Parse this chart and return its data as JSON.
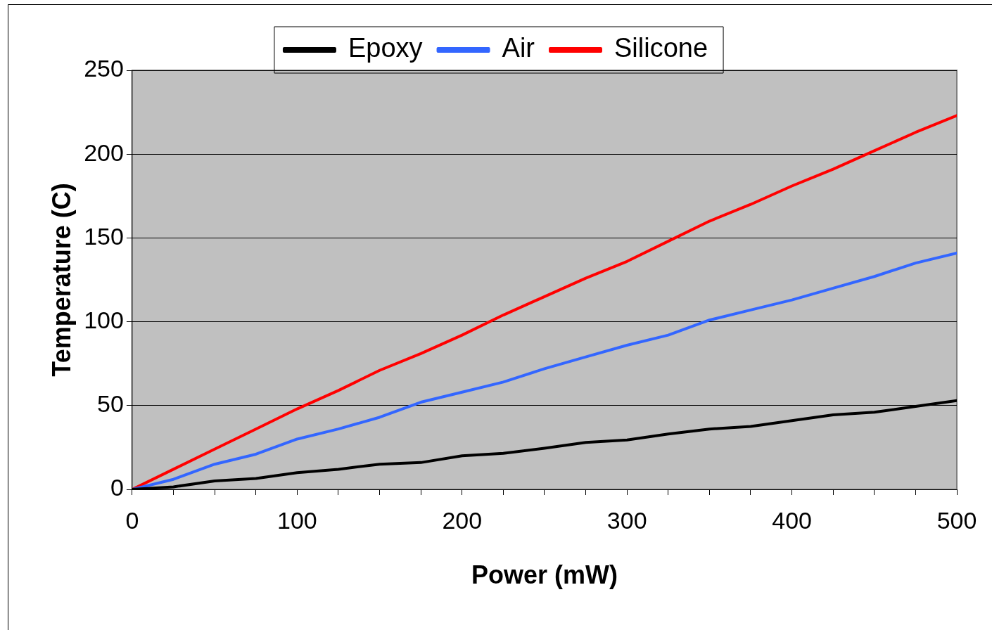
{
  "chart_data": {
    "type": "line",
    "xlabel": "Power (mW)",
    "ylabel": "Temperature (C)",
    "x": [
      0,
      25,
      50,
      75,
      100,
      125,
      150,
      175,
      200,
      225,
      250,
      275,
      300,
      325,
      350,
      375,
      400,
      425,
      450,
      475,
      500
    ],
    "series": [
      {
        "name": "Epoxy",
        "color": "#000000",
        "values": [
          0,
          1.5,
          5,
          6.5,
          10,
          12,
          15,
          16,
          20,
          21.5,
          24.5,
          28,
          29.5,
          33,
          36,
          37.5,
          41,
          44.5,
          46,
          49.5,
          53
        ]
      },
      {
        "name": "Air",
        "color": "#3366ff",
        "values": [
          0,
          6,
          15,
          21,
          30,
          36,
          43,
          52,
          58,
          64,
          72,
          79,
          86,
          92,
          101,
          107,
          113,
          120,
          127,
          135,
          141
        ]
      },
      {
        "name": "Silicone",
        "color": "#ff0000",
        "values": [
          0,
          12,
          24,
          36,
          48,
          59,
          71,
          81,
          92,
          104,
          115,
          126,
          136,
          148,
          160,
          170,
          181,
          191,
          202,
          213,
          223
        ]
      }
    ],
    "xlim": [
      0,
      500
    ],
    "xticks": [
      0,
      {
        "value": 25,
        "label": null
      },
      {
        "value": 50,
        "label": null
      },
      {
        "value": 75,
        "label": null
      },
      100,
      {
        "value": 125,
        "label": null
      },
      {
        "value": 150,
        "label": null
      },
      {
        "value": 175,
        "label": null
      },
      200,
      {
        "value": 225,
        "label": null
      },
      {
        "value": 250,
        "label": null
      },
      {
        "value": 275,
        "label": null
      },
      300,
      {
        "value": 325,
        "label": null
      },
      {
        "value": 350,
        "label": null
      },
      {
        "value": 375,
        "label": null
      },
      400,
      {
        "value": 425,
        "label": null
      },
      {
        "value": 450,
        "label": null
      },
      {
        "value": 475,
        "label": null
      },
      500
    ],
    "ylim": [
      0,
      250
    ],
    "yticks": [
      0,
      50,
      100,
      150,
      200,
      250
    ],
    "grid": "y",
    "legend": "top",
    "marker": "none",
    "line_style": "solid"
  }
}
